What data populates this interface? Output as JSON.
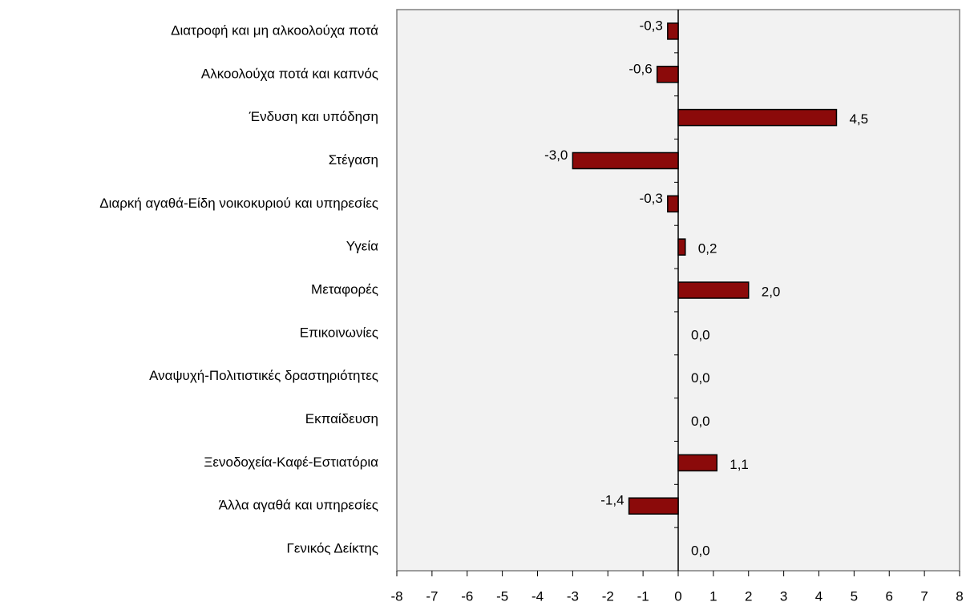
{
  "chart_data": {
    "type": "bar",
    "orientation": "horizontal",
    "categories": [
      "Διατροφή και μη αλκοολούχα ποτά",
      "Αλκοολούχα ποτά και καπνός",
      "Ένδυση και υπόδηση",
      "Στέγαση",
      "Διαρκή αγαθά-Είδη νοικοκυριού και υπηρεσίες",
      "Υγεία",
      "Μεταφορές",
      "Επικοινωνίες",
      "Αναψυχή-Πολιτιστικές δραστηριότητες",
      "Εκπαίδευση",
      "Ξενοδοχεία-Καφέ-Εστιατόρια",
      "Άλλα αγαθά και υπηρεσίες",
      "Γενικός Δείκτης"
    ],
    "values": [
      -0.3,
      -0.6,
      4.5,
      -3.0,
      -0.3,
      0.2,
      2.0,
      0.0,
      0.0,
      0.0,
      1.1,
      -1.4,
      0.0
    ],
    "value_labels": [
      "-0,3",
      "-0,6",
      "4,5",
      "-3,0",
      "-0,3",
      "0,2",
      "2,0",
      "0,0",
      "0,0",
      "0,0",
      "1,1",
      "-1,4",
      "0,0"
    ],
    "color": "#8b0a0a",
    "xlim": [
      -8,
      8
    ],
    "xticks": [
      -8,
      -7,
      -6,
      -5,
      -4,
      -3,
      -2,
      -1,
      0,
      1,
      2,
      3,
      4,
      5,
      6,
      7,
      8
    ]
  }
}
